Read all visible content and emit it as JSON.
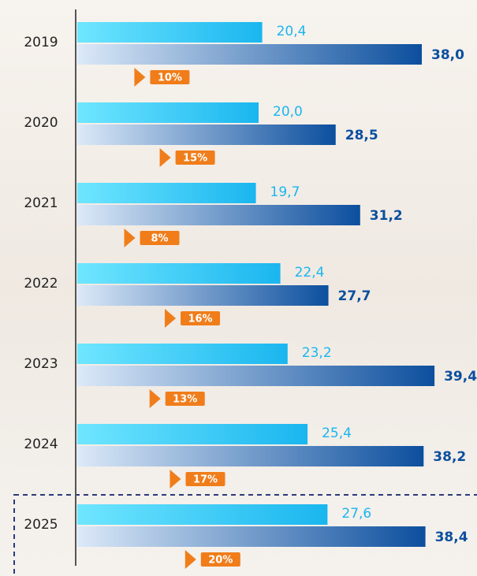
{
  "chart_data": {
    "type": "hbar",
    "categories": [
      "2019",
      "2020",
      "2021",
      "2022",
      "2023",
      "2024",
      "2025"
    ],
    "series": [
      {
        "color": "#1ab6ef",
        "values": [
          20.4,
          20.0,
          19.7,
          22.4,
          23.2,
          25.4,
          27.6
        ],
        "value_labels": [
          "20,4",
          "20,0",
          "19,7",
          "22,4",
          "23,2",
          "25,4",
          "27,6"
        ]
      },
      {
        "color": "#0c4f9e",
        "values": [
          38.0,
          28.5,
          31.2,
          27.7,
          39.4,
          38.2,
          38.4
        ],
        "value_labels": [
          "38,0",
          "28,5",
          "31,2",
          "27,7",
          "39,4",
          "38,2",
          "38,4"
        ]
      }
    ],
    "badges": {
      "color": "#f07d1a",
      "values": [
        10,
        15,
        8,
        16,
        13,
        17,
        20
      ],
      "value_labels": [
        "10%",
        "15%",
        "8%",
        "16%",
        "13%",
        "17%",
        "20%"
      ]
    },
    "xlim": [
      0,
      44
    ]
  }
}
